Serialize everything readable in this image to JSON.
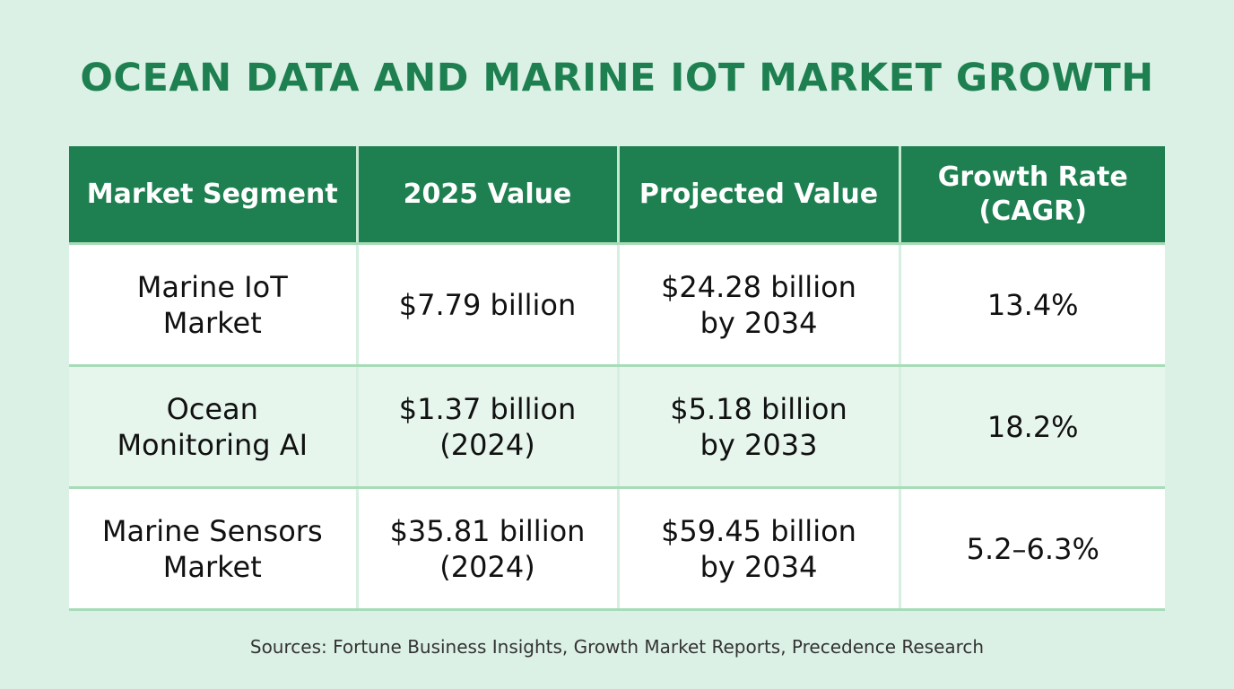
{
  "title": "OCEAN DATA AND MARINE IOT MARKET GROWTH",
  "table": {
    "headers": [
      "Market Segment",
      "2025 Value",
      "Projected Value",
      "Growth Rate (CAGR)"
    ],
    "rows": [
      [
        "Marine IoT Market",
        "$7.79 billion",
        "$24.28 billion by 2034",
        "13.4%"
      ],
      [
        "Ocean Monitoring AI",
        "$1.37 billion (2024)",
        "$5.18 billion by 2033",
        "18.2%"
      ],
      [
        "Marine Sensors Market",
        "$35.81 billion (2024)",
        "$59.45 billion by 2034",
        "5.2–6.3%"
      ]
    ]
  },
  "sources": "Sources: Fortune Business Insights, Growth Market Reports, Precedence Research",
  "colors": {
    "accent": "#1e8050",
    "background": "#dcf1e5"
  }
}
